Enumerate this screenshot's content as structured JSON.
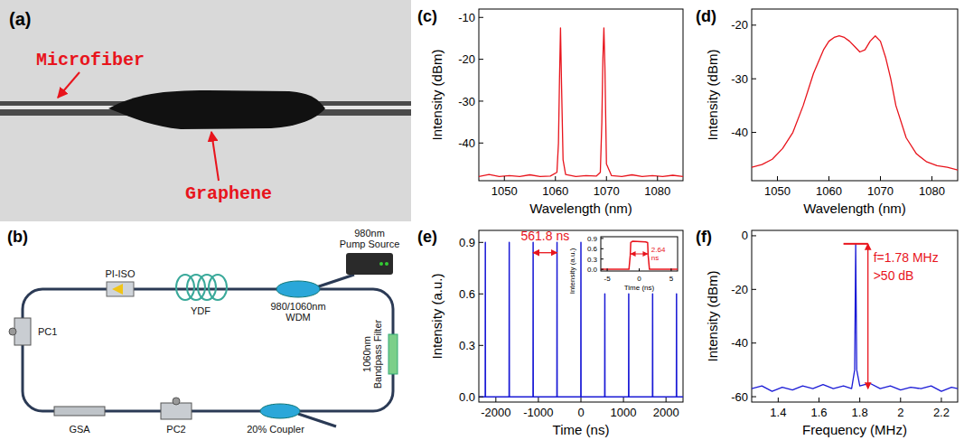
{
  "photo": {
    "title": "(a)",
    "labels": [
      "Microfiber",
      "Graphene"
    ]
  },
  "setup": {
    "title": "(b)",
    "components": [
      {
        "lines": [
          "980nm",
          "Pump Source"
        ]
      },
      {
        "lines": [
          "PI-ISO"
        ]
      },
      {
        "lines": [
          "YDF"
        ]
      },
      {
        "lines": [
          "980/1060nm",
          "WDM"
        ]
      },
      {
        "lines": [
          "1060nm",
          "Bandpass Filter"
        ]
      },
      {
        "lines": [
          "20% Coupler"
        ]
      },
      {
        "lines": [
          "PC2"
        ]
      },
      {
        "lines": [
          "GSA"
        ]
      },
      {
        "lines": [
          "PC1"
        ]
      }
    ]
  },
  "chart_data": [
    {
      "type": "line",
      "title": "(c)",
      "x_label": "Wavelength (nm)",
      "y_label": "Intensity (dBm)",
      "x": [
        1045,
        1047,
        1049,
        1051,
        1053,
        1055,
        1057,
        1059,
        1060.3,
        1060.6,
        1060.8,
        1061,
        1061.2,
        1061.5,
        1062,
        1064,
        1066,
        1068,
        1068.8,
        1069.1,
        1069.3,
        1069.5,
        1069.7,
        1070,
        1071,
        1073,
        1075,
        1077,
        1079,
        1081,
        1083,
        1085
      ],
      "series": [
        {
          "color": "#e8141c",
          "values": [
            -48,
            -47.5,
            -48,
            -47.8,
            -48,
            -47.6,
            -48,
            -47.9,
            -47,
            -40,
            -25,
            -12.5,
            -26,
            -44,
            -47.5,
            -48,
            -47.8,
            -47.9,
            -47,
            -35,
            -20,
            -12.5,
            -22,
            -45,
            -47.8,
            -48,
            -47.6,
            -48,
            -47.8,
            -48,
            -47.7,
            -48
          ]
        }
      ],
      "xlim": [
        1045,
        1085
      ],
      "xticks": [
        1050,
        1060,
        1070,
        1080
      ],
      "ylim": [
        -49,
        -8
      ],
      "yticks": [
        -10,
        -20,
        -30,
        -40
      ],
      "grid": false
    },
    {
      "type": "line",
      "title": "(d)",
      "x_label": "Wavelength (nm)",
      "y_label": "Intensity (dBm)",
      "x": [
        1045,
        1047,
        1049,
        1051,
        1053,
        1055,
        1057,
        1059,
        1060,
        1061,
        1062,
        1063,
        1064,
        1065,
        1066,
        1067,
        1068,
        1069,
        1070,
        1071,
        1072,
        1073,
        1075,
        1077,
        1079,
        1081,
        1083,
        1085
      ],
      "series": [
        {
          "color": "#e8141c",
          "values": [
            -46.5,
            -46,
            -45,
            -43,
            -40,
            -35,
            -29,
            -24.5,
            -23,
            -22.3,
            -22,
            -22.3,
            -23,
            -24,
            -25,
            -24.6,
            -23,
            -22,
            -23,
            -26,
            -30,
            -35,
            -41,
            -44,
            -45.5,
            -46.2,
            -46.5,
            -47
          ]
        }
      ],
      "xlim": [
        1045,
        1085
      ],
      "xticks": [
        1050,
        1060,
        1070,
        1080
      ],
      "ylim": [
        -49,
        -17
      ],
      "yticks": [
        -20,
        -30,
        -40
      ],
      "grid": false
    },
    {
      "type": "line",
      "title": "(e)",
      "x_label": "Time (ns)",
      "y_label": "Intensity (a.u.)",
      "x": [
        -2400,
        -2250.2,
        -2247.2,
        -2244.2,
        -1688.4,
        -1685.4,
        -1682.4,
        -1126.6,
        -1123.6,
        -1120.6,
        -564.8,
        -561.8,
        -558.8,
        -3,
        0,
        3,
        558.8,
        561.8,
        564.8,
        1120.6,
        1123.6,
        1126.6,
        1682.4,
        1685.4,
        1688.4,
        2244.2,
        2247.2,
        2250.2,
        2400
      ],
      "series": [
        {
          "color": "#1a1ad6",
          "values": [
            0,
            0,
            0.9,
            0,
            0,
            0.9,
            0,
            0,
            0.9,
            0,
            0,
            0.9,
            0,
            0,
            0.9,
            0,
            0,
            0.6,
            0,
            0,
            0.6,
            0,
            0,
            0.6,
            0,
            0,
            0.6,
            0,
            0
          ]
        }
      ],
      "xlim": [
        -2400,
        2400
      ],
      "xticks": [
        -2000,
        -1000,
        0,
        1000,
        2000
      ],
      "ylim": [
        -0.03,
        0.97
      ],
      "yticks": [
        {
          "value": 0,
          "label": "0.0"
        },
        0.3,
        0.6,
        0.9
      ],
      "grid": false,
      "annotations": [
        {
          "text": "561.8 ns",
          "x": [
            -1123.6,
            -561.8
          ],
          "y": 0.84,
          "line_style": "arrows",
          "color": "#e8141c"
        }
      ]
    },
    {
      "type": "line",
      "x_label": "Time (ns)",
      "y_label": "Intensity (a.u.)",
      "x": [
        -6,
        -1.6,
        -1.4,
        -1.32,
        -1,
        1,
        1.32,
        1.4,
        1.6,
        6
      ],
      "series": [
        {
          "color": "#e8141c",
          "values": [
            0,
            0,
            0.4,
            0.78,
            0.82,
            0.8,
            0.78,
            0.4,
            0,
            0
          ]
        }
      ],
      "xlim": [
        -6,
        6
      ],
      "xticks": [
        -5,
        0,
        5
      ],
      "ylim": [
        -0.05,
        0.95
      ],
      "yticks": [
        {
          "value": 0,
          "label": "0.0"
        },
        0.3,
        0.6,
        0.9
      ],
      "grid": false,
      "annotations": [
        {
          "text": "2.64 ns",
          "x": [
            -1.32,
            1.32
          ],
          "y": 0.45,
          "line_style": "arrows",
          "color": "#e8141c"
        }
      ]
    },
    {
      "type": "line",
      "title": "(f)",
      "x_label": "Frequency (MHz)",
      "y_label": "Intensity (dBm)",
      "x": [
        1.27,
        1.32,
        1.37,
        1.42,
        1.47,
        1.52,
        1.57,
        1.62,
        1.67,
        1.72,
        1.76,
        1.775,
        1.78,
        1.785,
        1.8,
        1.85,
        1.9,
        1.95,
        2.0,
        2.05,
        2.1,
        2.15,
        2.2,
        2.25,
        2.28
      ],
      "series": [
        {
          "color": "#1a1ad6",
          "values": [
            -57,
            -56,
            -58,
            -56.5,
            -57.5,
            -56,
            -57,
            -55.5,
            -57,
            -56,
            -57,
            -50,
            -3,
            -50,
            -56,
            -55,
            -57,
            -56,
            -57.5,
            -56.5,
            -57,
            -56,
            -58,
            -56.5,
            -57
          ]
        }
      ],
      "xlim": [
        1.27,
        2.28
      ],
      "xticks": [
        1.4,
        1.6,
        1.8,
        2.0,
        2.2
      ],
      "ylim": [
        -62,
        2
      ],
      "yticks": [
        0,
        -20,
        -40,
        -60
      ],
      "grid": false,
      "annotations": [
        {
          "text": "f=1.78 MHz",
          "x": [
            1.72,
            1.84
          ],
          "y": -3,
          "line_style": "bar",
          "color": "#e8141c"
        },
        {
          "text": ">50 dB",
          "x": 1.84,
          "y": [
            -3,
            -57
          ],
          "line_style": "arrows",
          "color": "#e8141c"
        }
      ]
    }
  ]
}
